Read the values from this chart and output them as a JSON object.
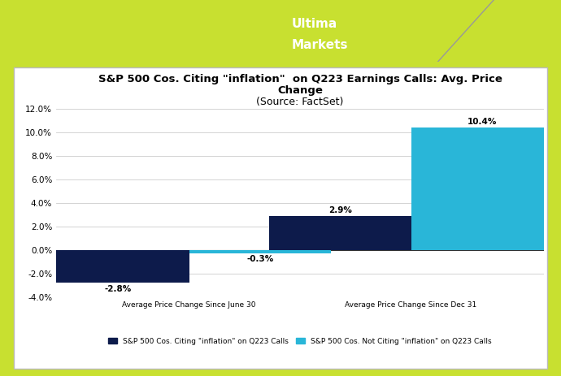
{
  "title_line1": "S&P 500 Cos. Citing \"inflation\"  on Q223 Earnings Calls: Avg. Price",
  "title_line2": "Change",
  "title_line3": "(Source: FactSet)",
  "categories": [
    "Average Price Change Since June 30",
    "Average Price Change Since Dec 31"
  ],
  "series1_label": "S&P 500 Cos. Citing \"inflation\" on Q223 Calls",
  "series2_label": "S&P 500 Cos. Not Citing \"inflation\" on Q223 Calls",
  "series1_values": [
    -2.8,
    2.9
  ],
  "series2_values": [
    -0.3,
    10.4
  ],
  "series1_color": "#0d1b4b",
  "series2_color": "#29b6d8",
  "bar_width": 0.32,
  "ylim": [
    -4.0,
    12.0
  ],
  "yticks": [
    -4.0,
    -2.0,
    0.0,
    2.0,
    4.0,
    6.0,
    8.0,
    10.0,
    12.0
  ],
  "chart_bg": "#ffffff",
  "outer_bg": "#c8e030",
  "header_bg": "#666666",
  "grid_color": "#cccccc",
  "title_fontsize": 9.5,
  "label_fontsize": 6.5,
  "tick_fontsize": 7.5,
  "annotation_fontsize": 7.5,
  "card_edge_color": "#bbbbbb",
  "zero_line_color": "#333333"
}
